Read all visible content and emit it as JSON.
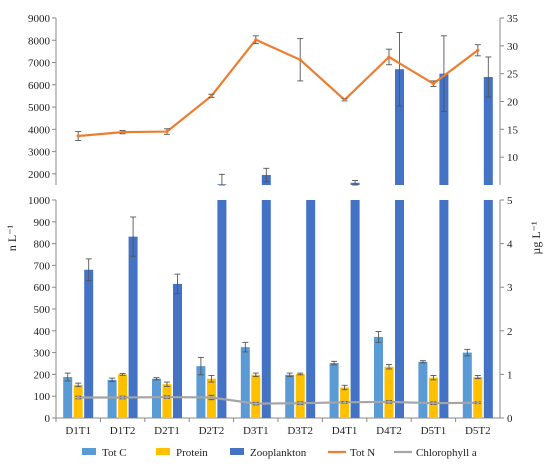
{
  "chart_data": {
    "type": "bar",
    "categories": [
      "D1T1",
      "D1T2",
      "D2T1",
      "D2T2",
      "D3T1",
      "D3T2",
      "D4T1",
      "D4T2",
      "D5T1",
      "D5T2"
    ],
    "series": [
      {
        "name": "Tot C",
        "kind": "bar",
        "axis": "left",
        "color": "#5b9bd5",
        "values": [
          188,
          175,
          180,
          238,
          325,
          198,
          252,
          372,
          258,
          300
        ],
        "errors": [
          18,
          8,
          5,
          40,
          22,
          8,
          8,
          25,
          5,
          15
        ]
      },
      {
        "name": "Protein",
        "kind": "bar",
        "axis": "left",
        "color": "#ffc000",
        "values": [
          152,
          200,
          155,
          180,
          198,
          202,
          140,
          235,
          185,
          188
        ],
        "errors": [
          8,
          4,
          10,
          15,
          8,
          4,
          10,
          10,
          10,
          7
        ]
      },
      {
        "name": "Zooplankton",
        "kind": "bar",
        "axis": "left",
        "color": "#4472c4",
        "values": [
          680,
          832,
          615,
          1530,
          1950,
          1430,
          1600,
          6700,
          6500,
          6350
        ],
        "errors": [
          50,
          90,
          45,
          450,
          300,
          40,
          100,
          1650,
          1700,
          900
        ]
      },
      {
        "name": "Tot N",
        "kind": "line",
        "axis": "right",
        "color": "#ed7d31",
        "values": [
          13.8,
          14.5,
          14.6,
          21,
          31.1,
          27.5,
          20.3,
          28,
          23.2,
          29.2
        ],
        "errors": [
          0.8,
          0.3,
          0.5,
          0.3,
          0.7,
          3.8,
          0.2,
          1.4,
          0.5,
          1.0
        ]
      },
      {
        "name": "Chlorophyll a",
        "kind": "line",
        "axis": "right",
        "color": "#a5a5a5",
        "values": [
          0.47,
          0.47,
          0.48,
          0.47,
          0.33,
          0.34,
          0.36,
          0.37,
          0.34,
          0.35
        ],
        "errors": [
          0.03,
          0.03,
          0.03,
          0.05,
          0.03,
          0.03,
          0.02,
          0.03,
          0.03,
          0.02
        ]
      }
    ],
    "left_axis": {
      "label": "n L⁻¹",
      "broken": true,
      "lower_range": [
        0,
        1000
      ],
      "lower_ticks": [
        "0",
        "100",
        "200",
        "300",
        "400",
        "500",
        "600",
        "700",
        "800",
        "900",
        "1000"
      ],
      "upper_range": [
        1500,
        9000
      ],
      "upper_ticks": [
        "2000",
        "3000",
        "4000",
        "5000",
        "6000",
        "7000",
        "8000",
        "9000"
      ]
    },
    "right_axis": {
      "label": "µg L⁻¹",
      "broken": true,
      "lower_range": [
        0,
        5
      ],
      "lower_ticks": [
        "0",
        "1",
        "2",
        "3",
        "4",
        "5"
      ],
      "upper_range": [
        5,
        35
      ],
      "upper_ticks": [
        "10",
        "15",
        "20",
        "25",
        "30",
        "35"
      ]
    },
    "legend_position": "bottom",
    "grid": false
  }
}
